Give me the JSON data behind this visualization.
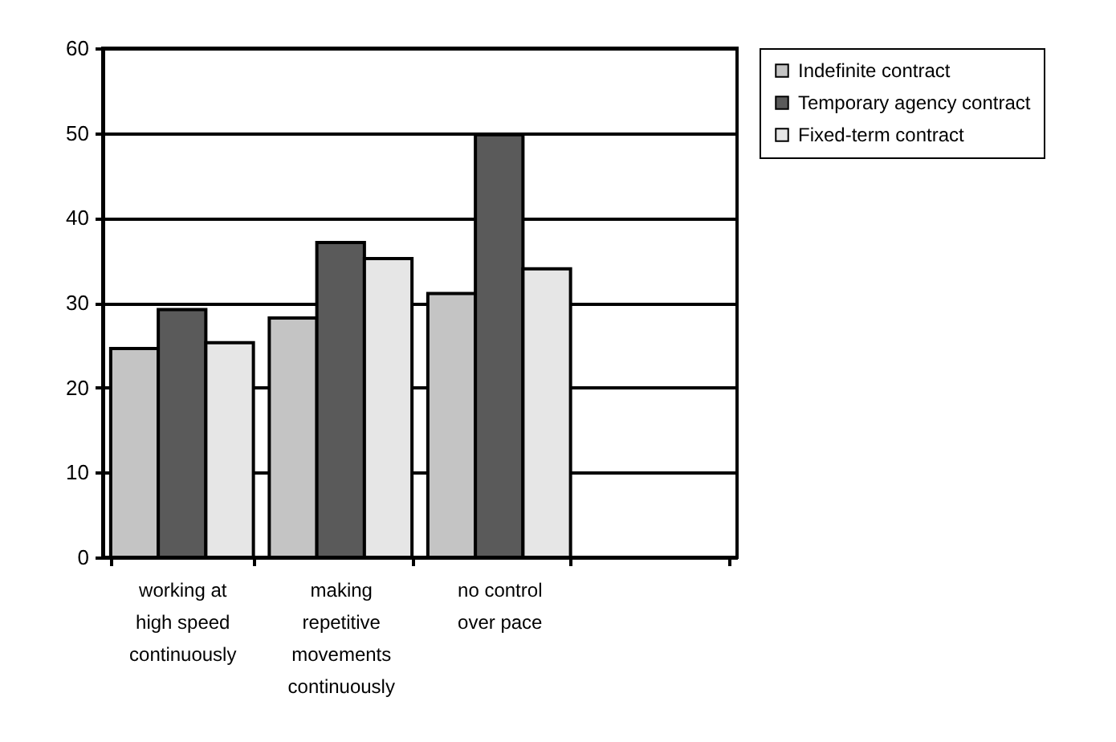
{
  "chart_data": {
    "type": "bar",
    "categories": [
      "working at high speed continuously",
      "making repetitive movements continuously",
      "no control over pace",
      null
    ],
    "series": [
      {
        "name": "Indefinite contract",
        "color": "#c4c4c4",
        "values": [
          24.6,
          28.2,
          31.1,
          null
        ]
      },
      {
        "name": "Temporary agency contract",
        "color": "#5a5a5a",
        "values": [
          29.2,
          37.1,
          49.8,
          null
        ]
      },
      {
        "name": "Fixed-term contract",
        "color": "#e6e6e6",
        "values": [
          25.3,
          35.2,
          34.0,
          null
        ]
      }
    ],
    "ylim": [
      0,
      60
    ],
    "yticks": [
      0,
      10,
      20,
      30,
      40,
      50,
      60
    ],
    "grid": "y",
    "legend": "right"
  }
}
